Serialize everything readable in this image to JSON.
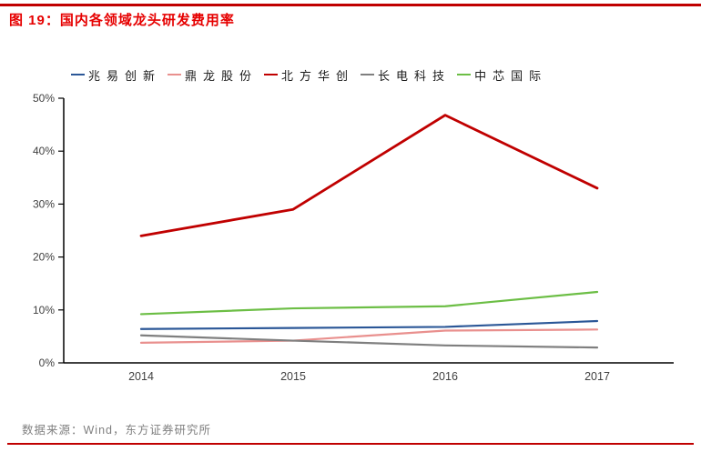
{
  "page": {
    "title": "图 19：国内各领域龙头研发费用率",
    "source": "数据来源：Wind，东方证券研究所",
    "accent_color": "#C00000",
    "title_color": "#E60000"
  },
  "chart_data": {
    "type": "line",
    "title": "国内各领域龙头研发费用率",
    "categories": [
      "2014",
      "2015",
      "2016",
      "2017"
    ],
    "series": [
      {
        "name": "兆易创新",
        "color": "#2B5797",
        "values": [
          6.4,
          6.6,
          6.8,
          7.9
        ]
      },
      {
        "name": "鼎龙股份",
        "color": "#E9908E",
        "values": [
          3.8,
          4.2,
          6.1,
          6.3
        ]
      },
      {
        "name": "北方华创",
        "color": "#C00000",
        "values": [
          24.0,
          29.0,
          46.8,
          33.0
        ]
      },
      {
        "name": "长电科技",
        "color": "#7F7F7F",
        "values": [
          5.2,
          4.2,
          3.3,
          2.9
        ]
      },
      {
        "name": "中芯国际",
        "color": "#6CBE45",
        "values": [
          9.2,
          10.3,
          10.7,
          13.4
        ]
      }
    ],
    "xlabel": "",
    "ylabel": "",
    "ylim": [
      0,
      50
    ],
    "yticks": [
      "0%",
      "10%",
      "20%",
      "30%",
      "40%",
      "50%"
    ],
    "grid": false,
    "legend_position": "top-left"
  }
}
